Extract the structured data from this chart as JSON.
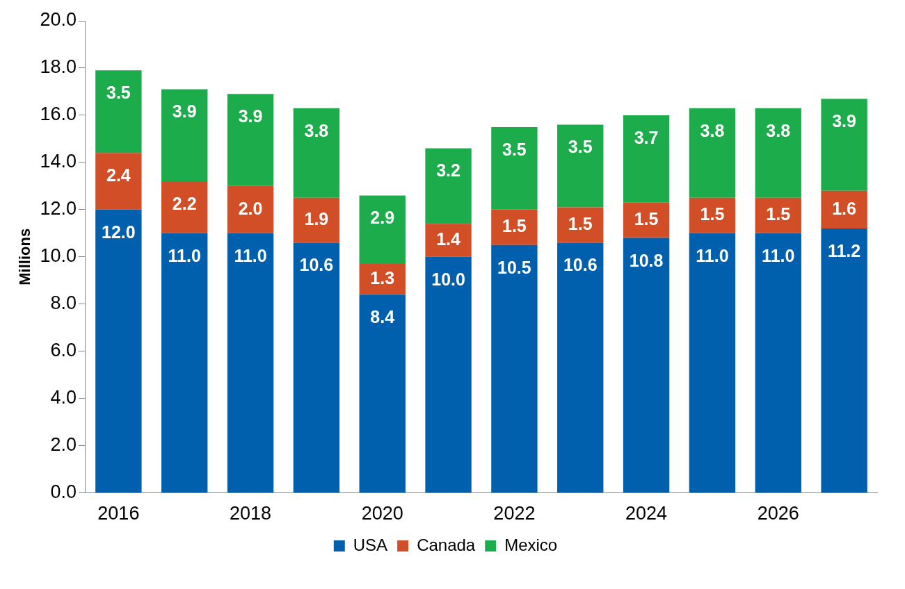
{
  "chart_data": {
    "type": "bar",
    "stacked": true,
    "ylabel": "Millions",
    "categories": [
      "2016",
      null,
      "2018",
      null,
      "2020",
      null,
      "2022",
      null,
      "2024",
      null,
      "2026",
      null
    ],
    "series": [
      {
        "name": "USA",
        "color": "#0060ad",
        "values": [
          12.0,
          11.0,
          11.0,
          10.6,
          8.4,
          10.0,
          10.5,
          10.6,
          10.8,
          11.0,
          11.0,
          11.2
        ],
        "value_labels": [
          "12.0",
          "11.0",
          "11.0",
          "10.6",
          "8.4",
          "10.0",
          "10.5",
          "10.6",
          "10.8",
          "11.0",
          "11.0",
          "11.2"
        ]
      },
      {
        "name": "Canada",
        "color": "#d24e27",
        "values": [
          2.4,
          2.2,
          2.0,
          1.9,
          1.3,
          1.4,
          1.5,
          1.5,
          1.5,
          1.5,
          1.5,
          1.6
        ],
        "value_labels": [
          "2.4",
          "2.2",
          "2.0",
          "1.9",
          "1.3",
          "1.4",
          "1.5",
          "1.5",
          "1.5",
          "1.5",
          "1.5",
          "1.6"
        ]
      },
      {
        "name": "Mexico",
        "color": "#1cac4c",
        "values": [
          3.5,
          3.9,
          3.9,
          3.8,
          2.9,
          3.2,
          3.5,
          3.5,
          3.7,
          3.8,
          3.8,
          3.9
        ],
        "value_labels": [
          "3.5",
          "3.9",
          "3.9",
          "3.8",
          "2.9",
          "3.2",
          "3.5",
          "3.5",
          "3.7",
          "3.8",
          "3.8",
          "3.9"
        ]
      }
    ],
    "ylim": [
      0,
      20
    ],
    "yticks": [
      {
        "value": 0,
        "label": "0.0"
      },
      {
        "value": 2,
        "label": "2.0"
      },
      {
        "value": 4,
        "label": "4.0"
      },
      {
        "value": 6,
        "label": "6.0"
      },
      {
        "value": 8,
        "label": "8.0"
      },
      {
        "value": 10,
        "label": "10.0"
      },
      {
        "value": 12,
        "label": "12.0"
      },
      {
        "value": 14,
        "label": "14.0"
      },
      {
        "value": 16,
        "label": "16.0"
      },
      {
        "value": 18,
        "label": "18.0"
      },
      {
        "value": 20,
        "label": "20.0"
      }
    ],
    "grid": false,
    "legend": "bottom"
  }
}
